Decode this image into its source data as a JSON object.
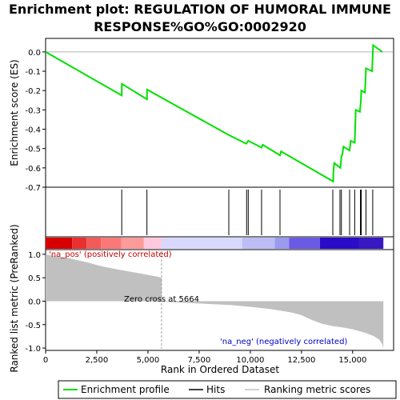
{
  "title_line1": "Enrichment plot: REGULATION OF HUMORAL IMMUNE",
  "title_line2": "RESPONSE%GO%GO:0002920",
  "colors": {
    "es_line": "#00e000",
    "hits": "#000000",
    "metric_fill": "#c0c0c0",
    "zero_cross_line": "#a0a0a0",
    "pos_label": "#cc0000",
    "neg_label": "#0000cc"
  },
  "legend": {
    "enrichment_profile": "Enrichment profile",
    "hits": "Hits",
    "ranking_metric": "Ranking metric scores"
  },
  "chart_data": {
    "type": "line",
    "n_genes": 16500,
    "es_panel": {
      "ylabel": "Enrichment score (ES)",
      "ylim": [
        -0.7,
        0.07
      ],
      "yticks": [
        0.0,
        -0.1,
        -0.2,
        -0.3,
        -0.4,
        -0.5,
        -0.6,
        -0.7
      ],
      "ytick_labels": [
        "0.0",
        "-0.1",
        "-0.2",
        "-0.3",
        "-0.4",
        "-0.5",
        "-0.6",
        "-0.7"
      ],
      "series": [
        {
          "points": [
            [
              0,
              0.0
            ],
            [
              3720,
              -0.225
            ],
            [
              3725,
              -0.165
            ],
            [
              4950,
              -0.245
            ],
            [
              4955,
              -0.195
            ],
            [
              8950,
              -0.43
            ],
            [
              9800,
              -0.475
            ],
            [
              9900,
              -0.46
            ],
            [
              10550,
              -0.495
            ],
            [
              10600,
              -0.48
            ],
            [
              11450,
              -0.535
            ],
            [
              11500,
              -0.515
            ],
            [
              14050,
              -0.67
            ],
            [
              14060,
              -0.62
            ],
            [
              14100,
              -0.575
            ],
            [
              14400,
              -0.6
            ],
            [
              14450,
              -0.54
            ],
            [
              14500,
              -0.53
            ],
            [
              14550,
              -0.49
            ],
            [
              14850,
              -0.51
            ],
            [
              14900,
              -0.46
            ],
            [
              15100,
              -0.47
            ],
            [
              15150,
              -0.3
            ],
            [
              15350,
              -0.31
            ],
            [
              15400,
              -0.255
            ],
            [
              15420,
              -0.2
            ],
            [
              15600,
              -0.21
            ],
            [
              15650,
              -0.085
            ],
            [
              15950,
              -0.1
            ],
            [
              16000,
              0.035
            ],
            [
              16450,
              0.0
            ]
          ]
        }
      ]
    },
    "hits": [
      3720,
      4950,
      8950,
      9820,
      9900,
      10550,
      11450,
      14030,
      14380,
      14450,
      14850,
      15100,
      15380,
      15420,
      15650,
      15980
    ],
    "heatmap": {
      "segments": [
        {
          "start": 0,
          "end": 1300,
          "color": "#d70000"
        },
        {
          "start": 1300,
          "end": 2000,
          "color": "#e83030"
        },
        {
          "start": 2000,
          "end": 2700,
          "color": "#f35a5a"
        },
        {
          "start": 2700,
          "end": 3700,
          "color": "#fb7878"
        },
        {
          "start": 3700,
          "end": 4800,
          "color": "#fd9a9a"
        },
        {
          "start": 4800,
          "end": 5664,
          "color": "#ffc8dc"
        },
        {
          "start": 5664,
          "end": 9600,
          "color": "#d8d8ff"
        },
        {
          "start": 9600,
          "end": 11200,
          "color": "#bcbcf6"
        },
        {
          "start": 11200,
          "end": 11900,
          "color": "#9a9aee"
        },
        {
          "start": 11900,
          "end": 13400,
          "color": "#6a5ae4"
        },
        {
          "start": 13400,
          "end": 15300,
          "color": "#2a0cc8"
        },
        {
          "start": 15300,
          "end": 16500,
          "color": "#3818c2"
        }
      ]
    },
    "metric_panel": {
      "ylabel": "Ranked list metric (PreRanked)",
      "ylim": [
        -1.05,
        1.1
      ],
      "yticks": [
        1.0,
        0.5,
        0.0,
        -0.5,
        -1.0
      ],
      "ytick_labels": [
        "1.0",
        "0.5",
        "0.0",
        "-0.5",
        "-1.0"
      ],
      "profile": [
        [
          0,
          1.0
        ],
        [
          200,
          0.98
        ],
        [
          500,
          0.96
        ],
        [
          1000,
          0.93
        ],
        [
          1500,
          0.88
        ],
        [
          2000,
          0.83
        ],
        [
          2500,
          0.77
        ],
        [
          3000,
          0.72
        ],
        [
          3500,
          0.68
        ],
        [
          4000,
          0.64
        ],
        [
          4500,
          0.6
        ],
        [
          5000,
          0.56
        ],
        [
          5500,
          0.52
        ],
        [
          5663,
          0.5
        ],
        [
          5664,
          0.0
        ],
        [
          6000,
          -0.02
        ],
        [
          7000,
          -0.04
        ],
        [
          8000,
          -0.06
        ],
        [
          9000,
          -0.08
        ],
        [
          10000,
          -0.12
        ],
        [
          11000,
          -0.17
        ],
        [
          12000,
          -0.24
        ],
        [
          12500,
          -0.3
        ],
        [
          13000,
          -0.4
        ],
        [
          13500,
          -0.48
        ],
        [
          14000,
          -0.53
        ],
        [
          14500,
          -0.56
        ],
        [
          15000,
          -0.6
        ],
        [
          15500,
          -0.66
        ],
        [
          16000,
          -0.74
        ],
        [
          16300,
          -0.82
        ],
        [
          16450,
          -0.92
        ],
        [
          16500,
          -1.0
        ]
      ],
      "zero_cross_label": "Zero cross at 5664",
      "zero_cross": 5664,
      "pos_label": "'na_pos' (positively correlated)",
      "neg_label": "'na_neg' (negatively correlated)"
    },
    "x_axis": {
      "xlabel": "Rank in Ordered Dataset",
      "xlim": [
        0,
        17000
      ],
      "xticks": [
        0,
        2500,
        5000,
        7500,
        10000,
        12500,
        15000
      ],
      "xtick_labels": [
        "0",
        "2,500",
        "5,000",
        "7,500",
        "10,000",
        "12,500",
        "15,000"
      ]
    }
  }
}
